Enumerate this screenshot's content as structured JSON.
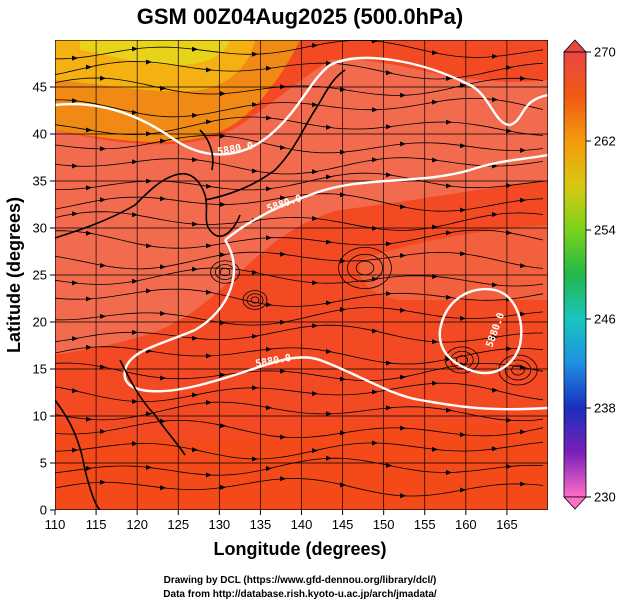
{
  "title": "GSM 00Z04Aug2025 (500.0hPa)",
  "x_axis_label": "Longitude (degrees)",
  "y_axis_label": "Latitude  (degrees)",
  "contour_labels": [
    "5880.0",
    "5880.0",
    "5880.0",
    "5880.0"
  ],
  "colorbar": {
    "ticks": [
      "270",
      "262",
      "254",
      "246",
      "238",
      "230"
    ],
    "colors": [
      "#ff6ec7",
      "#7a1fb8",
      "#1a2fc0",
      "#1f8fe0",
      "#19c5c0",
      "#22b84a",
      "#7ad21a",
      "#d8c812",
      "#f59a0e",
      "#f15a12",
      "#ea4646"
    ]
  },
  "credits": {
    "line1": "Drawing by DCL (https://www.gfd-dennou.org/library/dcl/)",
    "line2": "Data from http://database.rish.kyoto-u.ac.jp/arch/jmadata/"
  },
  "chart_data": {
    "type": "heatmap",
    "variable": "temperature with streamlines and 5880 m geopotential height contour",
    "title": "GSM 00Z04Aug2025 (500.0hPa)",
    "xlabel": "Longitude (degrees)",
    "ylabel": "Latitude  (degrees)",
    "xlim": [
      110,
      170
    ],
    "ylim": [
      0,
      50
    ],
    "x_ticks": [
      "110",
      "115",
      "120",
      "125",
      "130",
      "135",
      "140",
      "145",
      "150",
      "155",
      "160",
      "165"
    ],
    "y_ticks": [
      "0",
      "5",
      "10",
      "15",
      "20",
      "25",
      "30",
      "35",
      "40",
      "45"
    ],
    "colorbar_range": [
      230,
      270
    ],
    "contour_value": 5880.0
  }
}
